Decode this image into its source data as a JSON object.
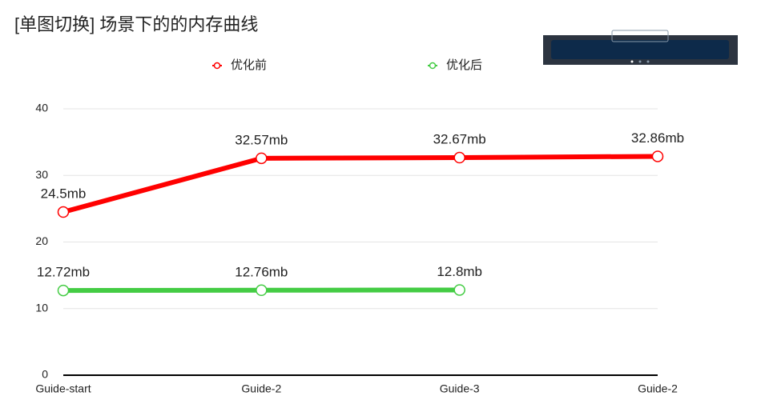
{
  "chart_data": {
    "type": "line",
    "title": "[单图切换] 场景下的的内存曲线",
    "categories": [
      "Guide-start",
      "Guide-2",
      "Guide-3",
      "Guide-2"
    ],
    "series": [
      {
        "name": "优化前",
        "color": "#ff0000",
        "values": [
          24.5,
          32.57,
          32.67,
          32.86
        ],
        "value_labels": [
          "24.5mb",
          "32.57mb",
          "32.67mb",
          "32.86mb"
        ]
      },
      {
        "name": "优化后",
        "color": "#44cc44",
        "values": [
          12.72,
          12.76,
          12.8,
          null
        ],
        "value_labels": [
          "12.72mb",
          "12.76mb",
          "12.8mb",
          null
        ]
      }
    ],
    "ylim": [
      0,
      40
    ],
    "yticks": [
      0,
      10,
      20,
      30,
      40
    ],
    "grid": true
  }
}
